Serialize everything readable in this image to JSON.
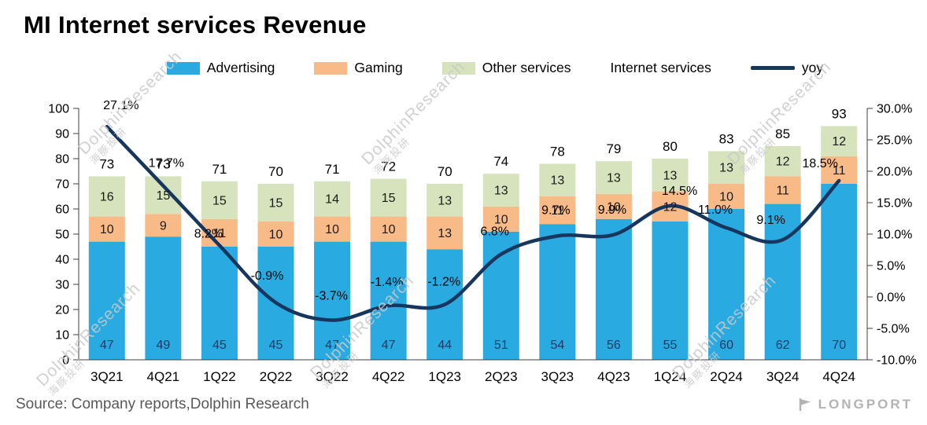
{
  "title": "MI Internet services Revenue",
  "source": "Source: Company reports,Dolphin Research",
  "brand": "LONGPORT",
  "watermark": {
    "en": "DolphinResearch",
    "cn": "海豚投研"
  },
  "colors": {
    "advertising": "#29ABE2",
    "gaming": "#F8BB88",
    "other_services": "#D6E3BC",
    "yoy_line": "#17365D",
    "axis": "#3f3f3f",
    "adv_label": "#1F3864",
    "label": "#1a1a1a"
  },
  "legend": [
    {
      "label": "Advertising",
      "marker": "square",
      "color": "#29ABE2"
    },
    {
      "label": "Gaming",
      "marker": "square",
      "color": "#F8BB88"
    },
    {
      "label": "Other services",
      "marker": "square",
      "color": "#D6E3BC"
    },
    {
      "label": "Internet services",
      "marker": "none",
      "color": ""
    },
    {
      "label": "yoy",
      "marker": "line",
      "color": "#17365D"
    }
  ],
  "chart_data": {
    "type": "bar",
    "subtype": "stacked-bars-with-line",
    "grid": false,
    "legend_position": "top",
    "categories": [
      "3Q21",
      "4Q21",
      "1Q22",
      "2Q22",
      "3Q22",
      "4Q22",
      "1Q23",
      "2Q23",
      "3Q23",
      "4Q23",
      "1Q24",
      "2Q24",
      "3Q24",
      "4Q24"
    ],
    "left_axis": {
      "min": 0,
      "max": 100,
      "step": 10,
      "ticks": [
        0,
        10,
        20,
        30,
        40,
        50,
        60,
        70,
        80,
        90,
        100
      ]
    },
    "right_axis": {
      "min": -10,
      "max": 30,
      "step": 5,
      "format": "percent1",
      "ticks": [
        -10,
        -5,
        0,
        5,
        10,
        15,
        20,
        25,
        30
      ],
      "tick_labels": [
        "-10.0%",
        "-5.0%",
        "0.0%",
        "5.0%",
        "10.0%",
        "15.0%",
        "20.0%",
        "25.0%",
        "30.0%"
      ]
    },
    "series": [
      {
        "name": "Advertising",
        "type": "bar",
        "axis": "left",
        "color": "#29ABE2",
        "values": [
          47,
          49,
          45,
          45,
          47,
          47,
          44,
          51,
          54,
          56,
          55,
          60,
          62,
          70
        ]
      },
      {
        "name": "Gaming",
        "type": "bar",
        "axis": "left",
        "color": "#F8BB88",
        "values": [
          10,
          9,
          11,
          10,
          10,
          10,
          13,
          10,
          11,
          10,
          12,
          10,
          11,
          11
        ]
      },
      {
        "name": "Other services",
        "type": "bar",
        "axis": "left",
        "color": "#D6E3BC",
        "values": [
          16,
          15,
          15,
          15,
          14,
          15,
          13,
          13,
          13,
          13,
          13,
          13,
          12,
          12
        ]
      },
      {
        "name": "Internet services",
        "type": "total-labels",
        "axis": "left",
        "values": [
          73,
          73,
          71,
          70,
          71,
          72,
          70,
          74,
          78,
          79,
          80,
          83,
          85,
          93
        ]
      },
      {
        "name": "yoy",
        "type": "line",
        "axis": "right",
        "color": "#17365D",
        "values": [
          27.1,
          17.7,
          8.2,
          -0.9,
          -3.7,
          -1.4,
          -1.2,
          6.8,
          9.7,
          9.9,
          14.5,
          11.0,
          9.1,
          18.5
        ],
        "labels": [
          "27.1%",
          "17.7%",
          "8.2%",
          "-0.9%",
          "-3.7%",
          "-1.4%",
          "-1.2%",
          "6.8%",
          "9.7%",
          "9.9%",
          "14.5%",
          "11.0%",
          "9.1%",
          "18.5%"
        ]
      }
    ]
  }
}
